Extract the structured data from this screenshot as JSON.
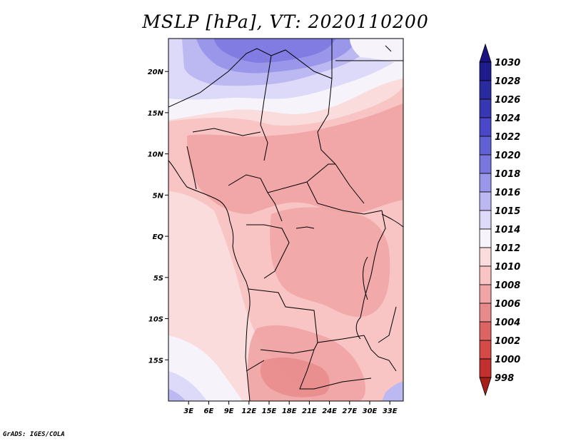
{
  "title": "MSLP [hPa], VT: 2020110200",
  "credit": "GrADS: IGES/COLA",
  "map": {
    "lon_range": [
      0,
      35
    ],
    "lat_range": [
      -20,
      24
    ],
    "lat_ticks": [
      {
        "value": 20,
        "label": "20N"
      },
      {
        "value": 15,
        "label": "15N"
      },
      {
        "value": 10,
        "label": "10N"
      },
      {
        "value": 5,
        "label": "5N"
      },
      {
        "value": 0,
        "label": "EQ"
      },
      {
        "value": -5,
        "label": "5S"
      },
      {
        "value": -10,
        "label": "10S"
      },
      {
        "value": -15,
        "label": "15S"
      }
    ],
    "lon_ticks": [
      {
        "value": 3,
        "label": "3E"
      },
      {
        "value": 6,
        "label": "6E"
      },
      {
        "value": 9,
        "label": "9E"
      },
      {
        "value": 12,
        "label": "12E"
      },
      {
        "value": 15,
        "label": "15E"
      },
      {
        "value": 18,
        "label": "18E"
      },
      {
        "value": 21,
        "label": "21E"
      },
      {
        "value": 24,
        "label": "24E"
      },
      {
        "value": 27,
        "label": "27E"
      },
      {
        "value": 30,
        "label": "30E"
      },
      {
        "value": 33,
        "label": "33E"
      }
    ]
  },
  "colorbar": {
    "unit": "hPa",
    "levels_top_to_bottom": [
      "1030",
      "1028",
      "1026",
      "1024",
      "1022",
      "1020",
      "1018",
      "1016",
      "1015",
      "1014",
      "1012",
      "1010",
      "1008",
      "1006",
      "1004",
      "1002",
      "1000",
      "998"
    ],
    "colors_top_to_bottom": [
      "#1e1c8c",
      "#2a2aa0",
      "#3838b4",
      "#4a48c8",
      "#6060d4",
      "#7a76e0",
      "#9a96ea",
      "#bcb8f2",
      "#dcdaf8",
      "#f6f3fa",
      "#fadcdc",
      "#f8c4c4",
      "#f0a4a4",
      "#e88a8a",
      "#de6464",
      "#d44a46",
      "#c43030",
      "#a51e1e"
    ],
    "top_arrow_color": "#1a1080",
    "bottom_arrow_color": "#a52018"
  }
}
